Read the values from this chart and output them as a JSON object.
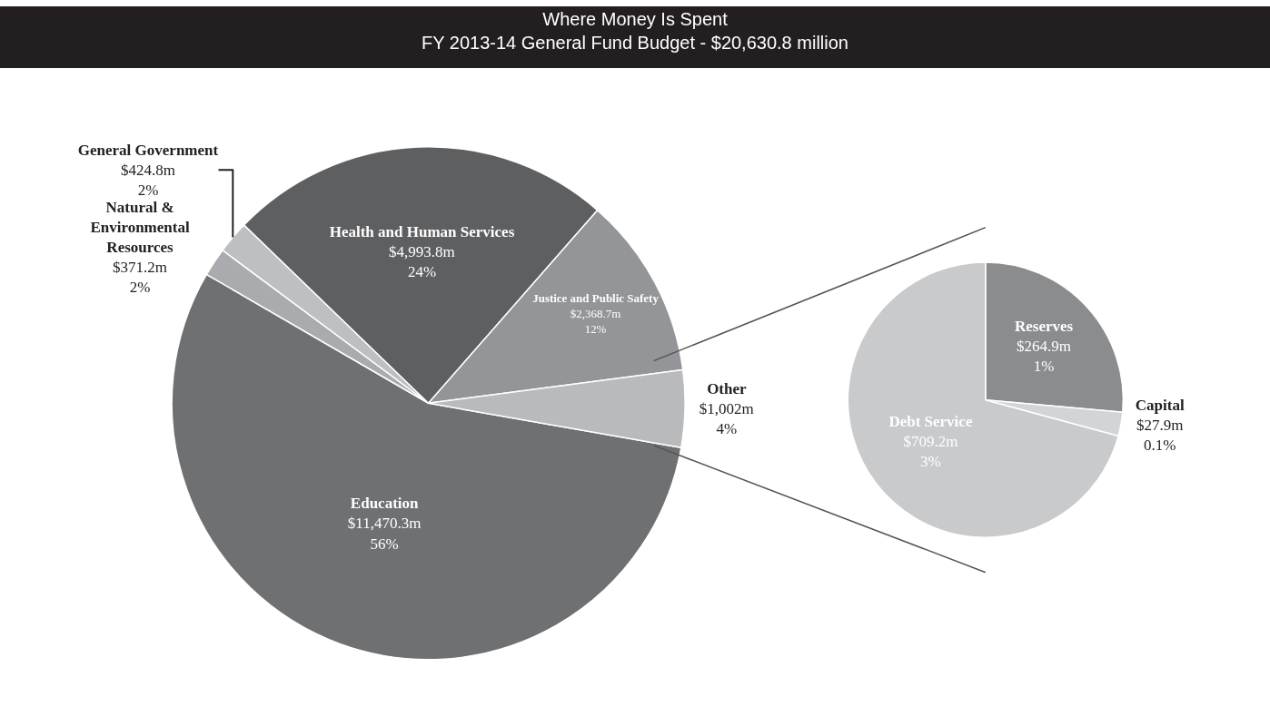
{
  "chart_data": [
    {
      "type": "pie",
      "title": "Where Money Is Spent",
      "subtitle": "FY 2013-14 General Fund Budget - $20,630.8 million",
      "categories": [
        "Education",
        "Natural & Environmental Resources",
        "General Government",
        "Health and Human Services",
        "Justice and Public Safety",
        "Other"
      ],
      "values": [
        11470.3,
        371.2,
        424.8,
        4993.8,
        2368.7,
        1002
      ],
      "colors": [
        "#6f7072",
        "#a9abae",
        "#bdbfc1",
        "#5e5f61",
        "#939598",
        "#b9babc"
      ],
      "value_labels": [
        "$11,470.3m",
        "$371.2m",
        "$424.8m",
        "$4,993.8m",
        "$2,368.7m",
        "$1,002m"
      ],
      "annotations": [
        "56%",
        "2%",
        "2%",
        "24%",
        "12%",
        "4%"
      ]
    },
    {
      "type": "pie",
      "categories": [
        "Reserves",
        "Capital",
        "Debt Service"
      ],
      "values": [
        264.9,
        27.9,
        709.2
      ],
      "colors": [
        "#8b8c8e",
        "#d3d4d6",
        "#c9cacc"
      ],
      "value_labels": [
        "$264.9m",
        "$27.9m",
        "$709.2m"
      ],
      "annotations": [
        "1%",
        "0.1%",
        "3%"
      ]
    }
  ]
}
